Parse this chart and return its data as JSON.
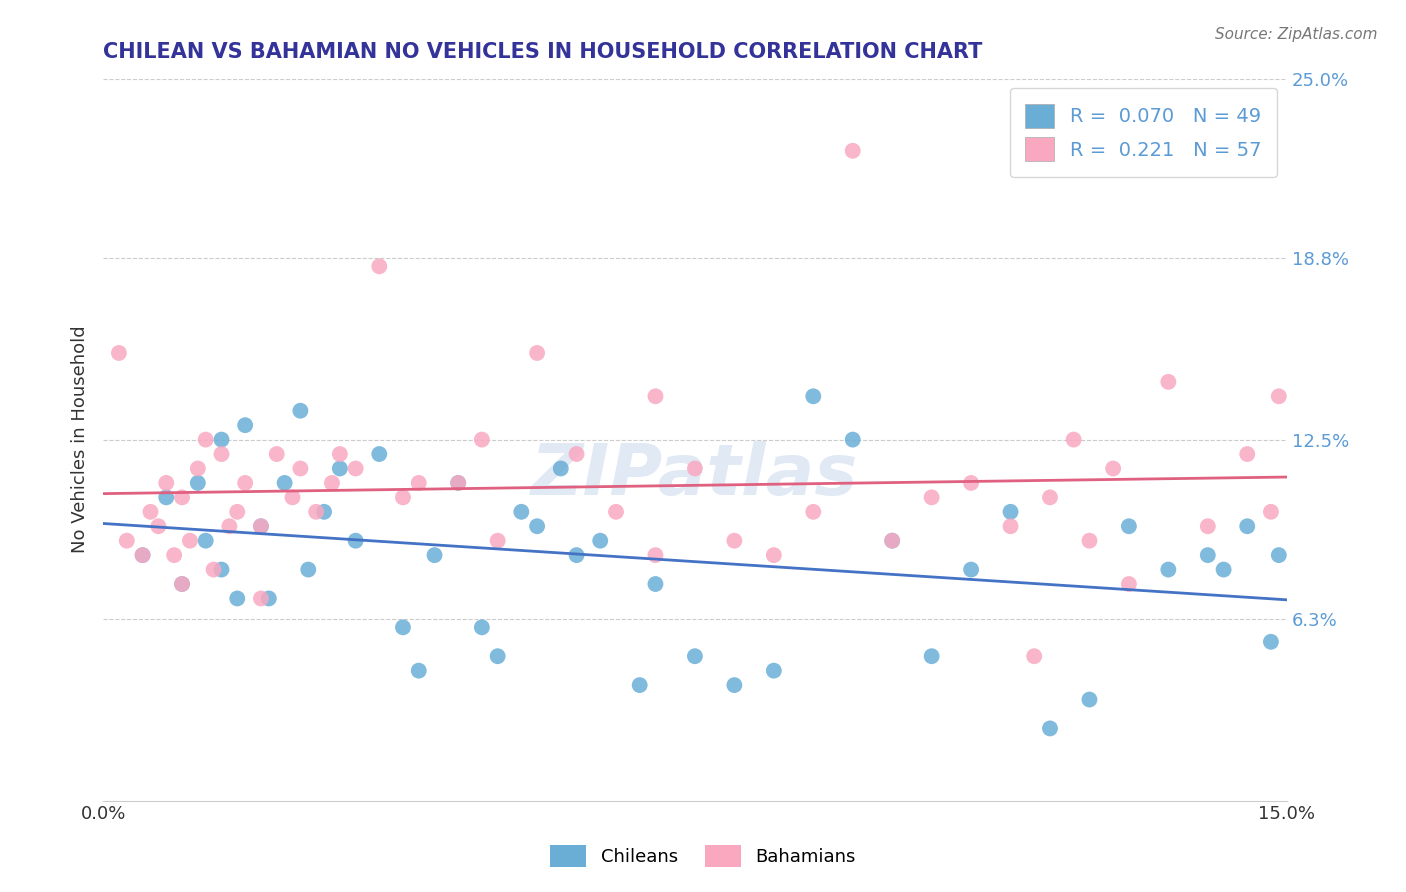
{
  "title": "CHILEAN VS BAHAMIAN NO VEHICLES IN HOUSEHOLD CORRELATION CHART",
  "source": "Source: ZipAtlas.com",
  "xlabel": "",
  "ylabel": "No Vehicles in Household",
  "xlim": [
    0.0,
    15.0
  ],
  "ylim": [
    0.0,
    25.0
  ],
  "xticks": [
    0.0,
    15.0
  ],
  "xticklabels": [
    "0.0%",
    "15.0%"
  ],
  "yticks": [
    6.3,
    12.5,
    18.8,
    25.0
  ],
  "yticklabels": [
    "6.3%",
    "12.5%",
    "18.8%",
    "25.0%"
  ],
  "chilean_color": "#6aaed6",
  "bahamian_color": "#f9a8c0",
  "chilean_line_color": "#4472c4",
  "bahamian_line_color": "#e06080",
  "background_color": "#ffffff",
  "grid_color": "#cccccc",
  "watermark": "ZIPatlas",
  "r_chilean": "0.070",
  "n_chilean": "49",
  "r_bahamian": "0.221",
  "n_bahamian": "57",
  "chilean_x": [
    0.5,
    0.8,
    1.0,
    1.2,
    1.3,
    1.5,
    1.5,
    1.7,
    1.8,
    2.0,
    2.1,
    2.3,
    2.5,
    2.6,
    2.8,
    3.0,
    3.2,
    3.5,
    3.8,
    4.0,
    4.2,
    4.5,
    4.8,
    5.0,
    5.3,
    5.5,
    5.8,
    6.0,
    6.3,
    6.8,
    7.0,
    7.5,
    8.0,
    8.5,
    9.0,
    9.5,
    10.0,
    10.5,
    11.0,
    11.5,
    12.0,
    12.5,
    13.0,
    13.5,
    14.0,
    14.2,
    14.5,
    14.8,
    14.9
  ],
  "chilean_y": [
    8.5,
    10.5,
    7.5,
    11.0,
    9.0,
    12.5,
    8.0,
    7.0,
    13.0,
    9.5,
    7.0,
    11.0,
    13.5,
    8.0,
    10.0,
    11.5,
    9.0,
    12.0,
    6.0,
    4.5,
    8.5,
    11.0,
    6.0,
    5.0,
    10.0,
    9.5,
    11.5,
    8.5,
    9.0,
    4.0,
    7.5,
    5.0,
    4.0,
    4.5,
    14.0,
    12.5,
    9.0,
    5.0,
    8.0,
    10.0,
    2.5,
    3.5,
    9.5,
    8.0,
    8.5,
    8.0,
    9.5,
    5.5,
    8.5
  ],
  "bahamian_x": [
    0.2,
    0.3,
    0.5,
    0.6,
    0.7,
    0.8,
    0.9,
    1.0,
    1.0,
    1.1,
    1.2,
    1.3,
    1.4,
    1.5,
    1.6,
    1.7,
    1.8,
    2.0,
    2.0,
    2.2,
    2.4,
    2.5,
    2.7,
    2.9,
    3.0,
    3.2,
    3.5,
    3.8,
    4.0,
    4.5,
    4.8,
    5.0,
    5.5,
    6.0,
    6.5,
    7.0,
    7.0,
    7.5,
    8.0,
    8.5,
    9.0,
    9.5,
    10.0,
    10.5,
    11.0,
    11.5,
    11.8,
    12.0,
    12.3,
    12.5,
    12.8,
    13.0,
    13.5,
    14.0,
    14.5,
    14.8,
    14.9
  ],
  "bahamian_y": [
    15.5,
    9.0,
    8.5,
    10.0,
    9.5,
    11.0,
    8.5,
    10.5,
    7.5,
    9.0,
    11.5,
    12.5,
    8.0,
    12.0,
    9.5,
    10.0,
    11.0,
    9.5,
    7.0,
    12.0,
    10.5,
    11.5,
    10.0,
    11.0,
    12.0,
    11.5,
    18.5,
    10.5,
    11.0,
    11.0,
    12.5,
    9.0,
    15.5,
    12.0,
    10.0,
    14.0,
    8.5,
    11.5,
    9.0,
    8.5,
    10.0,
    22.5,
    9.0,
    10.5,
    11.0,
    9.5,
    5.0,
    10.5,
    12.5,
    9.0,
    11.5,
    7.5,
    14.5,
    9.5,
    12.0,
    10.0,
    14.0
  ]
}
